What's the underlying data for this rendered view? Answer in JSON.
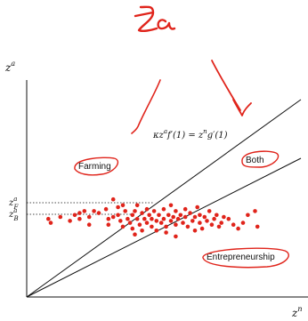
{
  "axes": {
    "y_label": "z",
    "y_label_sup": "a",
    "x_label": "z",
    "x_label_sup": "n"
  },
  "ticks": {
    "zF": "z",
    "zF_sup": "a",
    "zF_sub": "F",
    "zB": "z",
    "zB_sup": "a",
    "zB_sub": "B"
  },
  "equation": "κz",
  "equation_sup": "a",
  "equation_rest_1": "f′(1) = z",
  "equation_sup2": "n",
  "equation_rest_2": "g′(1)",
  "regions": {
    "farming": "Farming",
    "both": "Both",
    "entrepreneurship": "Entrepreneurship"
  },
  "annotation_scribble": "za",
  "colors": {
    "ink": "#e0241b",
    "points": "#e0241b",
    "axes": "#111111"
  },
  "scatter": {
    "points": [
      [
        0.09,
        0.4
      ],
      [
        0.1,
        0.38
      ],
      [
        0.14,
        0.41
      ],
      [
        0.18,
        0.39
      ],
      [
        0.2,
        0.42
      ],
      [
        0.22,
        0.43
      ],
      [
        0.22,
        0.4
      ],
      [
        0.24,
        0.44
      ],
      [
        0.26,
        0.37
      ],
      [
        0.26,
        0.41
      ],
      [
        0.28,
        0.44
      ],
      [
        0.3,
        0.43
      ],
      [
        0.33,
        0.45
      ],
      [
        0.34,
        0.4
      ],
      [
        0.34,
        0.37
      ],
      [
        0.36,
        0.41
      ],
      [
        0.38,
        0.46
      ],
      [
        0.38,
        0.42
      ],
      [
        0.39,
        0.39
      ],
      [
        0.4,
        0.36
      ],
      [
        0.41,
        0.44
      ],
      [
        0.42,
        0.4
      ],
      [
        0.43,
        0.38
      ],
      [
        0.44,
        0.42
      ],
      [
        0.44,
        0.35
      ],
      [
        0.45,
        0.44
      ],
      [
        0.46,
        0.4
      ],
      [
        0.46,
        0.47
      ],
      [
        0.47,
        0.37
      ],
      [
        0.48,
        0.43
      ],
      [
        0.48,
        0.34
      ],
      [
        0.49,
        0.4
      ],
      [
        0.5,
        0.45
      ],
      [
        0.5,
        0.38
      ],
      [
        0.51,
        0.42
      ],
      [
        0.52,
        0.36
      ],
      [
        0.52,
        0.4
      ],
      [
        0.53,
        0.44
      ],
      [
        0.54,
        0.39
      ],
      [
        0.54,
        0.34
      ],
      [
        0.55,
        0.42
      ],
      [
        0.56,
        0.38
      ],
      [
        0.57,
        0.45
      ],
      [
        0.57,
        0.4
      ],
      [
        0.58,
        0.36
      ],
      [
        0.59,
        0.42
      ],
      [
        0.6,
        0.39
      ],
      [
        0.6,
        0.47
      ],
      [
        0.61,
        0.41
      ],
      [
        0.62,
        0.37
      ],
      [
        0.62,
        0.44
      ],
      [
        0.63,
        0.4
      ],
      [
        0.64,
        0.42
      ],
      [
        0.65,
        0.38
      ],
      [
        0.66,
        0.45
      ],
      [
        0.66,
        0.41
      ],
      [
        0.67,
        0.36
      ],
      [
        0.68,
        0.43
      ],
      [
        0.69,
        0.39
      ],
      [
        0.7,
        0.41
      ],
      [
        0.71,
        0.46
      ],
      [
        0.72,
        0.38
      ],
      [
        0.72,
        0.42
      ],
      [
        0.73,
        0.35
      ],
      [
        0.74,
        0.41
      ],
      [
        0.75,
        0.39
      ],
      [
        0.76,
        0.44
      ],
      [
        0.77,
        0.37
      ],
      [
        0.78,
        0.4
      ],
      [
        0.79,
        0.42
      ],
      [
        0.8,
        0.36
      ],
      [
        0.81,
        0.38
      ],
      [
        0.82,
        0.41
      ],
      [
        0.84,
        0.4
      ],
      [
        0.86,
        0.37
      ],
      [
        0.88,
        0.35
      ],
      [
        0.9,
        0.38
      ],
      [
        0.92,
        0.42
      ],
      [
        0.95,
        0.44
      ],
      [
        0.96,
        0.36
      ],
      [
        0.36,
        0.5
      ],
      [
        0.4,
        0.47
      ],
      [
        0.45,
        0.32
      ],
      [
        0.58,
        0.33
      ],
      [
        0.62,
        0.31
      ],
      [
        0.7,
        0.34
      ]
    ]
  }
}
